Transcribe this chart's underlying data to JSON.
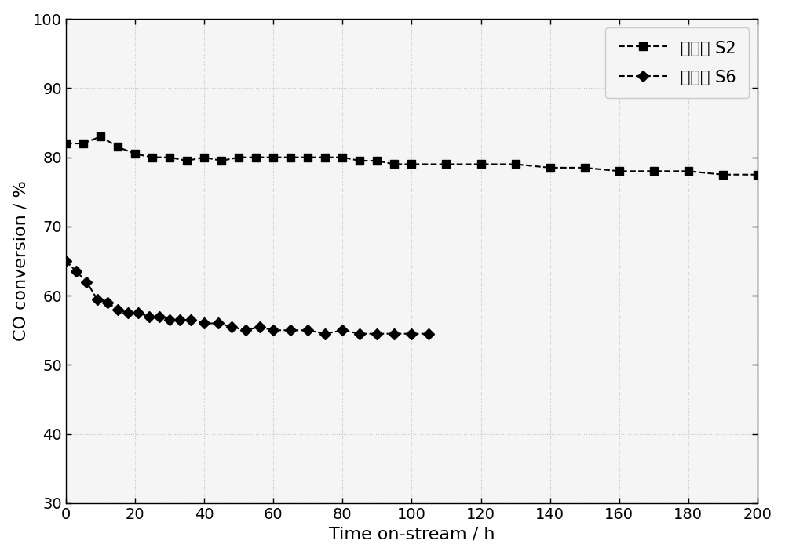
{
  "s2_x": [
    0,
    5,
    10,
    15,
    20,
    25,
    30,
    35,
    40,
    45,
    50,
    55,
    60,
    65,
    70,
    75,
    80,
    85,
    90,
    95,
    100,
    110,
    120,
    130,
    140,
    150,
    160,
    170,
    180,
    190,
    200
  ],
  "s2_y": [
    82,
    82,
    83,
    81.5,
    80.5,
    80,
    80,
    79.5,
    80,
    79.5,
    80,
    80,
    80,
    80,
    80,
    80,
    80,
    79.5,
    79.5,
    79,
    79,
    79,
    79,
    79,
    78.5,
    78.5,
    78,
    78,
    78,
    77.5,
    77.5
  ],
  "s6_x": [
    0,
    3,
    6,
    9,
    12,
    15,
    18,
    21,
    24,
    27,
    30,
    33,
    36,
    40,
    44,
    48,
    52,
    56,
    60,
    65,
    70,
    75,
    80,
    85,
    90,
    95,
    100,
    105
  ],
  "s6_y": [
    65,
    63.5,
    62,
    59.5,
    59,
    58,
    57.5,
    57.5,
    57,
    57,
    56.5,
    56.5,
    56.5,
    56,
    56,
    55.5,
    55,
    55.5,
    55,
    55,
    55,
    54.5,
    55,
    54.5,
    54.5,
    54.5,
    54.5,
    54.5
  ],
  "xlabel": "Time on-stream / h",
  "ylabel": "CO conversion / %",
  "legend_s2": "催化剂 S2",
  "legend_s6": "催化剂 S6",
  "xlim": [
    0,
    200
  ],
  "ylim": [
    30,
    100
  ],
  "xticks": [
    0,
    20,
    40,
    60,
    80,
    100,
    120,
    140,
    160,
    180,
    200
  ],
  "yticks": [
    30,
    40,
    50,
    60,
    70,
    80,
    90,
    100
  ],
  "line_color": "#000000",
  "bg_color": "#ffffff",
  "plot_bg_color": "#f5f5f5",
  "fontsize_label": 16,
  "fontsize_tick": 14,
  "fontsize_legend": 15
}
